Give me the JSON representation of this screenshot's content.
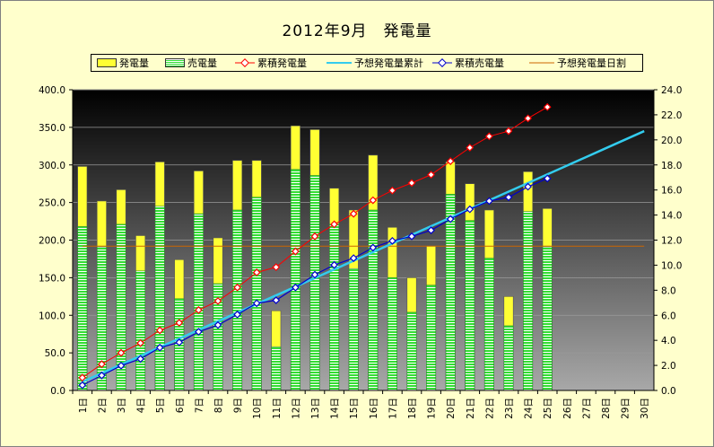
{
  "title": "2012年9月　発電量",
  "legend": [
    {
      "label": "発電量",
      "kind": "bar-yellow"
    },
    {
      "label": "売電量",
      "kind": "bar-green"
    },
    {
      "label": "累積発電量",
      "kind": "line-red-marker"
    },
    {
      "label": "予想発電量累計",
      "kind": "line-cyan"
    },
    {
      "label": "累積売電量",
      "kind": "line-blue-marker"
    },
    {
      "label": "予想発電量日割",
      "kind": "line-orange"
    }
  ],
  "colors": {
    "generation": "#ffff33",
    "sold": "#33dd33",
    "cumulative_generation": "#ff0000",
    "forecast_cumulative": "#33ccee",
    "cumulative_sold": "#0000cc",
    "forecast_daily": "#cc6600"
  },
  "chart_data": {
    "type": "bar",
    "categories": [
      "1日",
      "2日",
      "3日",
      "4日",
      "5日",
      "6日",
      "7日",
      "8日",
      "9日",
      "10日",
      "11日",
      "12日",
      "13日",
      "14日",
      "15日",
      "16日",
      "17日",
      "18日",
      "19日",
      "20日",
      "21日",
      "22日",
      "23日",
      "24日",
      "25日",
      "26日",
      "27日",
      "28日",
      "29日",
      "30日"
    ],
    "y_left": {
      "min": 0,
      "max": 400,
      "ticks": [
        "0.0",
        "50.0",
        "100.0",
        "150.0",
        "200.0",
        "250.0",
        "300.0",
        "350.0",
        "400.0"
      ]
    },
    "y_right": {
      "min": 0,
      "max": 24,
      "ticks": [
        "0.0",
        "2.0",
        "4.0",
        "6.0",
        "8.0",
        "10.0",
        "12.0",
        "14.0",
        "16.0",
        "18.0",
        "20.0",
        "22.0",
        "24.0"
      ]
    },
    "series": [
      {
        "name": "発電量",
        "type": "bar",
        "axis": "left",
        "values": [
          298,
          252,
          267,
          206,
          304,
          174,
          292,
          203,
          306,
          306,
          106,
          352,
          347,
          269,
          240,
          313,
          217,
          150,
          192,
          304,
          275,
          240,
          125,
          291,
          242,
          null,
          null,
          null,
          null,
          null
        ]
      },
      {
        "name": "売電量",
        "type": "bar",
        "axis": "left",
        "values": [
          218,
          191,
          221,
          159,
          245,
          122,
          235,
          142,
          240,
          257,
          58,
          294,
          286,
          221,
          162,
          240,
          150,
          104,
          140,
          261,
          226,
          176,
          86,
          238,
          191,
          null,
          null,
          null,
          null,
          null
        ]
      },
      {
        "name": "累積発電量",
        "type": "line",
        "axis": "left",
        "values": [
          17,
          35,
          50,
          63,
          80,
          90,
          107,
          119,
          137,
          157,
          164,
          185,
          205,
          221,
          235,
          253,
          266,
          276,
          287,
          305,
          323,
          338,
          345,
          362,
          377,
          null,
          null,
          null,
          null,
          null
        ]
      },
      {
        "name": "予想発電量累計",
        "type": "line",
        "axis": "left",
        "values": [
          11.5,
          23,
          34.5,
          46,
          57.5,
          69,
          80.5,
          92,
          103.5,
          115,
          126.5,
          138,
          149.5,
          161,
          172.5,
          184,
          195.5,
          207,
          218.5,
          230,
          241.5,
          253,
          264.5,
          276,
          287.5,
          299,
          310.5,
          322,
          333.5,
          345
        ]
      },
      {
        "name": "累積売電量",
        "type": "line",
        "axis": "left",
        "values": [
          7,
          20,
          33,
          42,
          57,
          64,
          78,
          87,
          101,
          116,
          120,
          137,
          154,
          167,
          176,
          190,
          199,
          205,
          213,
          228,
          241,
          252,
          257,
          271,
          282,
          null,
          null,
          null,
          null,
          null
        ]
      },
      {
        "name": "予想発電量日割",
        "type": "line",
        "axis": "left",
        "values": [
          192,
          192,
          192,
          192,
          192,
          192,
          192,
          192,
          192,
          192,
          192,
          192,
          192,
          192,
          192,
          192,
          192,
          192,
          192,
          192,
          192,
          192,
          192,
          192,
          192,
          192,
          192,
          192,
          192,
          192
        ]
      }
    ]
  }
}
